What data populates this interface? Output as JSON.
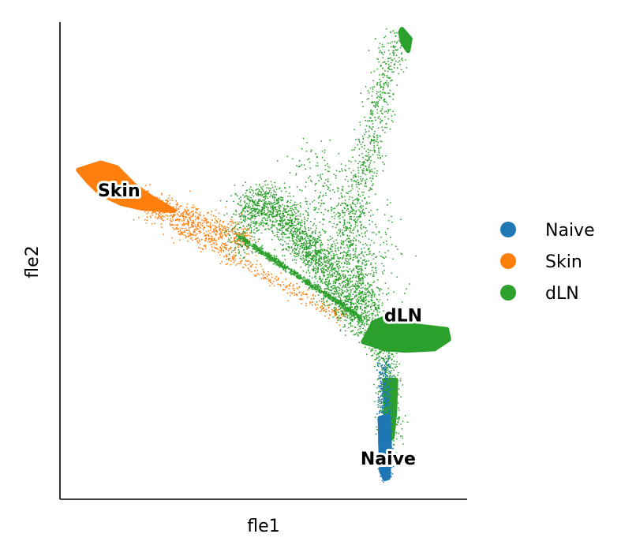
{
  "chart_data": {
    "type": "scatter",
    "xlabel": "fle1",
    "ylabel": "fle2",
    "xlim": [
      0,
      100
    ],
    "ylim": [
      0,
      100
    ],
    "grid": false,
    "ticks": false,
    "legend_position": "right",
    "series": [
      {
        "name": "Naive",
        "color": "#1f77b4"
      },
      {
        "name": "Skin",
        "color": "#ff7f0e"
      },
      {
        "name": "dLN",
        "color": "#2ca02c"
      }
    ],
    "regions": [
      {
        "series": "Skin",
        "kind": "blob",
        "path": [
          [
            4.5,
            69
          ],
          [
            10,
            70.5
          ],
          [
            14,
            69.5
          ],
          [
            18,
            66
          ],
          [
            22,
            63.5
          ],
          [
            28,
            60.5
          ],
          [
            20,
            61
          ],
          [
            15,
            62
          ],
          [
            10,
            64
          ],
          [
            7,
            66.5
          ]
        ]
      },
      {
        "series": "Skin",
        "kind": "scatter",
        "count": 700,
        "line": [
          [
            20,
            62.5
          ],
          [
            46,
            54
          ]
        ],
        "spread": 1.6
      },
      {
        "series": "Skin",
        "kind": "scatter",
        "count": 350,
        "line": [
          [
            28,
            57
          ],
          [
            70,
            38
          ]
        ],
        "spread": 0.8
      },
      {
        "series": "dLN",
        "kind": "blob",
        "path": [
          [
            84,
            98.5
          ],
          [
            86,
            96.5
          ],
          [
            85.5,
            94
          ],
          [
            84.2,
            95.6
          ],
          [
            83.6,
            97.8
          ]
        ]
      },
      {
        "series": "dLN",
        "kind": "blob",
        "path": [
          [
            77,
            37
          ],
          [
            81,
            38.5
          ],
          [
            86,
            36.5
          ],
          [
            95,
            35.6
          ],
          [
            95.5,
            33.5
          ],
          [
            92,
            31.5
          ],
          [
            85,
            31.2
          ],
          [
            80,
            31.5
          ],
          [
            74.5,
            33
          ]
        ]
      },
      {
        "series": "dLN",
        "kind": "blob",
        "path": [
          [
            79.8,
            25
          ],
          [
            82.5,
            25
          ],
          [
            82.2,
            18
          ],
          [
            81.6,
            13
          ],
          [
            80.2,
            12
          ]
        ]
      },
      {
        "series": "dLN",
        "kind": "line",
        "count": 700,
        "line": [
          [
            44,
            55
          ],
          [
            74,
            38
          ]
        ],
        "spread": 0.5
      },
      {
        "series": "dLN",
        "kind": "scatter",
        "count": 900,
        "line": [
          [
            82,
            96
          ],
          [
            75,
            70
          ],
          [
            70,
            55
          ],
          [
            77,
            38
          ]
        ],
        "spread": 1.8
      },
      {
        "series": "dLN",
        "kind": "scatter",
        "count": 1500,
        "line": [
          [
            44,
            60.5
          ],
          [
            52,
            62.5
          ],
          [
            58,
            56
          ],
          [
            65,
            50
          ],
          [
            70,
            44
          ],
          [
            77,
            36
          ]
        ],
        "spread": 2.2
      },
      {
        "series": "dLN",
        "kind": "scatter",
        "count": 700,
        "line": [
          [
            44,
            52
          ],
          [
            48,
            61.5
          ],
          [
            56,
            57
          ],
          [
            62,
            50
          ],
          [
            68,
            42
          ],
          [
            74,
            36
          ]
        ],
        "spread": 1.8
      },
      {
        "series": "dLN",
        "kind": "scatter",
        "count": 500,
        "line": [
          [
            78,
            36
          ],
          [
            80,
            28
          ],
          [
            81,
            20
          ],
          [
            81,
            12
          ]
        ],
        "spread": 1.5
      },
      {
        "series": "dLN",
        "kind": "scatter",
        "count": 450,
        "line": [
          [
            60,
            70
          ],
          [
            73,
            58
          ],
          [
            78,
            44
          ]
        ],
        "spread": 4
      },
      {
        "series": "Naive",
        "kind": "blob",
        "path": [
          [
            78.6,
            17
          ],
          [
            80.6,
            17.5
          ],
          [
            81,
            10
          ],
          [
            80.6,
            4.5
          ],
          [
            79.8,
            4.3
          ],
          [
            78.9,
            6
          ]
        ]
      },
      {
        "series": "Naive",
        "kind": "scatter",
        "count": 500,
        "line": [
          [
            79.6,
            28
          ],
          [
            79.8,
            18
          ],
          [
            79.8,
            5
          ]
        ],
        "spread": 0.8
      }
    ],
    "annotations": [
      {
        "text": "Skin",
        "x": 14.5,
        "y": 64.8
      },
      {
        "text": "dLN",
        "x": 84.3,
        "y": 38.6
      },
      {
        "text": "Naive",
        "x": 80.6,
        "y": 8.6
      }
    ]
  }
}
